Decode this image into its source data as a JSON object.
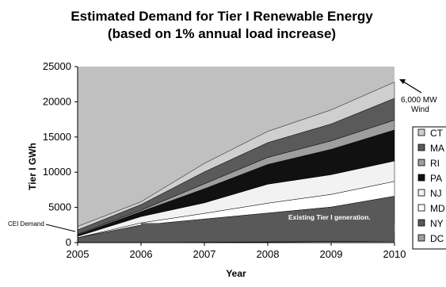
{
  "chart_data": {
    "type": "area",
    "title": "Estimated Demand for Tier I Renewable Energy",
    "subtitle": "(based on 1% annual load increase)",
    "xlabel": "Year",
    "ylabel": "Tier I GWh",
    "x": [
      "2005",
      "2006",
      "2007",
      "2008",
      "2009",
      "2010"
    ],
    "ylim": [
      0,
      25000
    ],
    "yticks": [
      "0",
      "5000",
      "10000",
      "15000",
      "20000",
      "25000"
    ],
    "grid": false,
    "legend_position": "right",
    "stacking": "stacked",
    "series": [
      {
        "name": "DC",
        "color": "#a0a0a0",
        "values": [
          0,
          0,
          50,
          100,
          150,
          200
        ]
      },
      {
        "name": "NY",
        "color": "#595959",
        "values": [
          700,
          2500,
          3300,
          4100,
          4900,
          6400
        ]
      },
      {
        "name": "MD",
        "color": "#ffffff",
        "values": [
          0,
          300,
          800,
          1400,
          1800,
          2100
        ]
      },
      {
        "name": "NJ",
        "color": "#f2f2f2",
        "values": [
          200,
          900,
          1500,
          2700,
          2800,
          2900
        ]
      },
      {
        "name": "PA",
        "color": "#111111",
        "values": [
          200,
          700,
          2000,
          2800,
          3600,
          4400
        ]
      },
      {
        "name": "RI",
        "color": "#9e9e9e",
        "values": [
          100,
          200,
          700,
          1000,
          1200,
          1400
        ]
      },
      {
        "name": "MA",
        "color": "#5a5a5a",
        "values": [
          600,
          800,
          1700,
          2100,
          2400,
          3100
        ]
      },
      {
        "name": "CT",
        "color": "#cfcfcf",
        "values": [
          500,
          400,
          1200,
          1600,
          2000,
          2300
        ]
      }
    ],
    "legend_order": [
      "CT",
      "MA",
      "RI",
      "PA",
      "NJ",
      "MD",
      "NY",
      "DC"
    ],
    "existing_generation_level": 3000,
    "plot_background": "#c0c0c0",
    "annotations": {
      "existing": "Existing Tier I generation.",
      "cei": "CEI Demand",
      "wind_line1": "6,000 MW",
      "wind_line2": "Wind"
    }
  }
}
